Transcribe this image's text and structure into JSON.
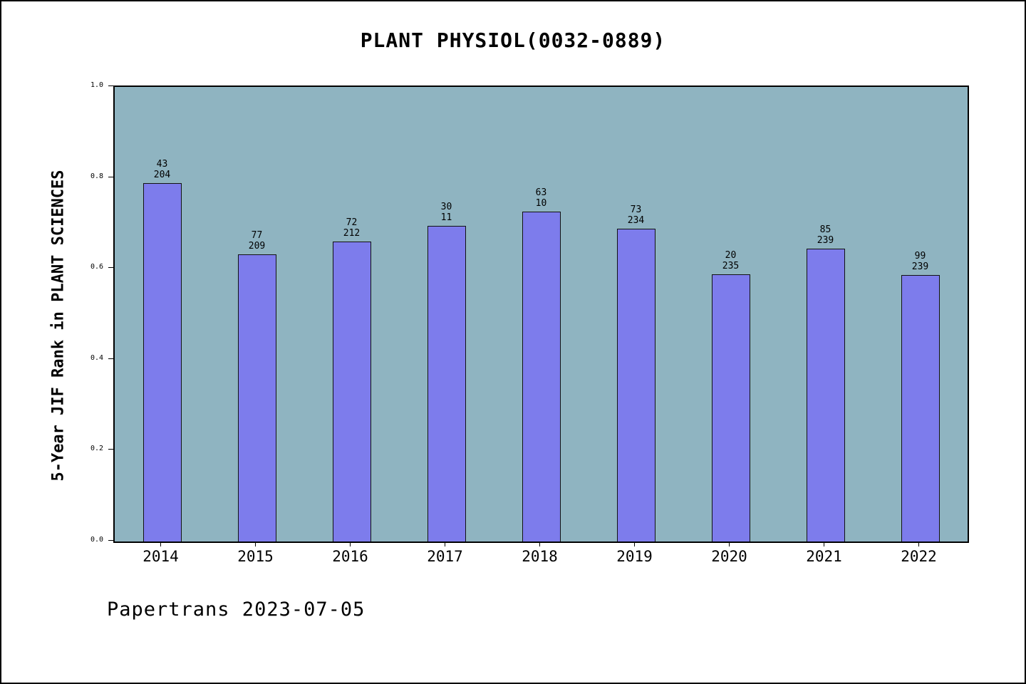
{
  "footer": {
    "text": "Papertrans 2023-07-05"
  },
  "chart_data": {
    "type": "bar",
    "title": "PLANT PHYSIOL(0032-0889)",
    "xlabel": "",
    "ylabel": "5-Year JIF Rank in PLANT SCIENCES",
    "ylim": [
      0.0,
      1.0
    ],
    "yticks": [
      "0.0",
      "0.2",
      "0.4",
      "0.6",
      "0.8",
      "1.0"
    ],
    "grid": false,
    "legend": "none",
    "categories": [
      "2014",
      "2015",
      "2016",
      "2017",
      "2018",
      "2019",
      "2020",
      "2021",
      "2022"
    ],
    "bars": [
      {
        "year": "2014",
        "rank": "43",
        "total": "204",
        "value": 0.789
      },
      {
        "year": "2015",
        "rank": "77",
        "total": "209",
        "value": 0.632
      },
      {
        "year": "2016",
        "rank": "72",
        "total": "212",
        "value": 0.66
      },
      {
        "year": "2017",
        "rank": "30",
        "total": "11",
        "value": 0.695
      },
      {
        "year": "2018",
        "rank": "63",
        "total": "10",
        "value": 0.725
      },
      {
        "year": "2019",
        "rank": "73",
        "total": "234",
        "value": 0.688
      },
      {
        "year": "2020",
        "rank": "20",
        "total": "235",
        "value": 0.588
      },
      {
        "year": "2021",
        "rank": "85",
        "total": "239",
        "value": 0.644
      },
      {
        "year": "2022",
        "rank": "99",
        "total": "239",
        "value": 0.586
      }
    ],
    "colors": {
      "bar": "#7d7cec",
      "bar_border": "#111111",
      "plot_bg": "#8fb4c1",
      "page_bg": "#ffffff",
      "text": "#000000"
    }
  }
}
